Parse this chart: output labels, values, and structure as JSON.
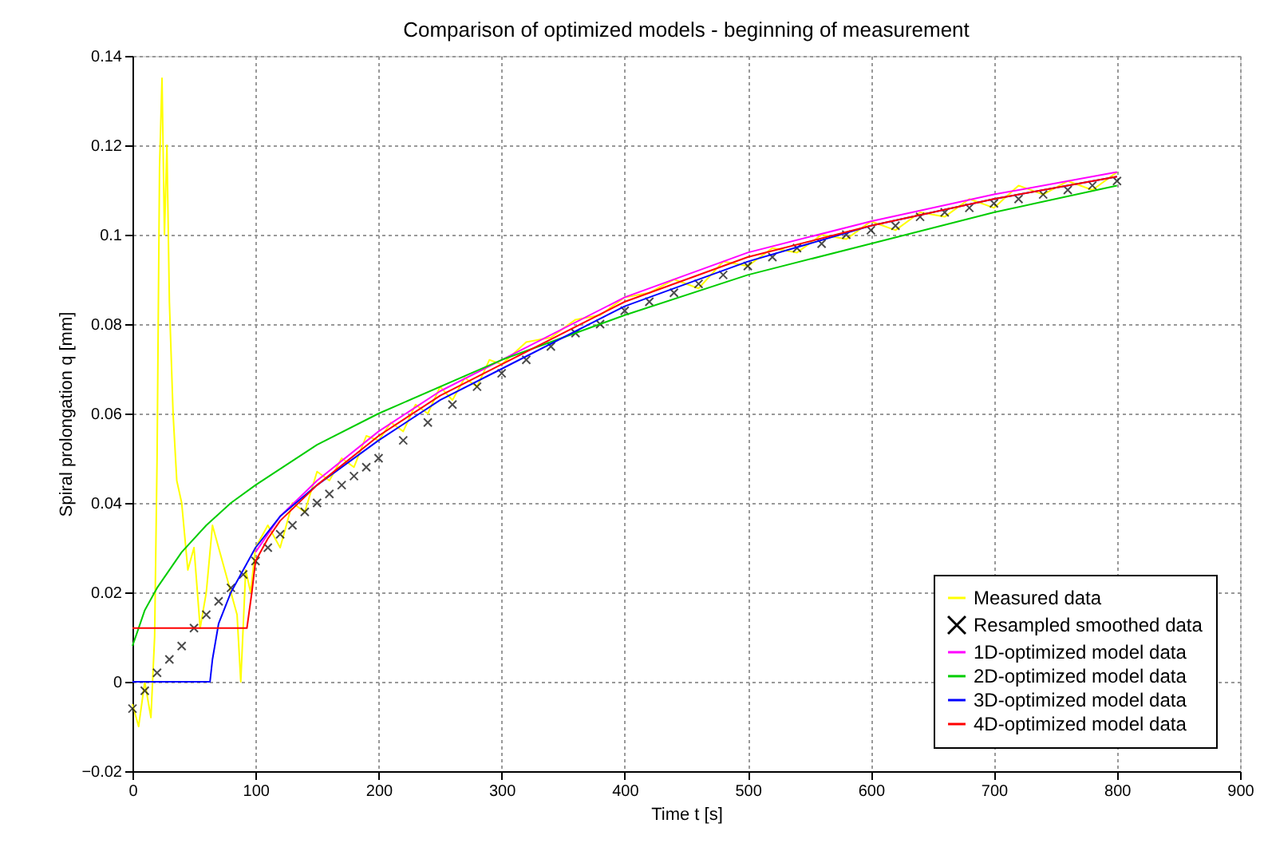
{
  "chart_data": {
    "type": "line",
    "title": "Comparison of optimized models - beginning of measurement",
    "xlabel": "Time t [s]",
    "ylabel": "Spiral prolongation q [mm]",
    "xlim": [
      0,
      900
    ],
    "xticks": [
      0,
      100,
      200,
      300,
      400,
      500,
      600,
      700,
      800,
      900
    ],
    "ylim": [
      -0.02,
      0.14
    ],
    "yticks": [
      -0.02,
      0,
      0.02,
      0.04,
      0.06,
      0.08,
      0.1,
      0.12,
      0.14
    ],
    "grid": true,
    "legend": "bottom right",
    "line_style": "solid",
    "series": [
      {
        "name": "Measured data",
        "color": "#ffff00",
        "marker": "none",
        "x": [
          0,
          5,
          10,
          15,
          18,
          20,
          22,
          24,
          26,
          28,
          30,
          33,
          36,
          40,
          45,
          50,
          55,
          60,
          65,
          70,
          75,
          80,
          85,
          88,
          92,
          96,
          100,
          110,
          120,
          130,
          140,
          150,
          160,
          170,
          180,
          190,
          200,
          210,
          220,
          230,
          240,
          250,
          260,
          270,
          280,
          290,
          300,
          320,
          340,
          360,
          380,
          400,
          420,
          440,
          460,
          480,
          500,
          520,
          540,
          560,
          580,
          600,
          620,
          640,
          660,
          680,
          700,
          720,
          740,
          760,
          780,
          800
        ],
        "values": [
          -0.005,
          -0.01,
          0.0,
          -0.008,
          0.01,
          0.05,
          0.115,
          0.135,
          0.1,
          0.12,
          0.085,
          0.06,
          0.045,
          0.04,
          0.025,
          0.03,
          0.012,
          0.02,
          0.035,
          0.03,
          0.025,
          0.02,
          0.015,
          0.0,
          0.025,
          0.02,
          0.03,
          0.035,
          0.03,
          0.04,
          0.038,
          0.047,
          0.045,
          0.05,
          0.048,
          0.055,
          0.054,
          0.058,
          0.056,
          0.062,
          0.06,
          0.066,
          0.063,
          0.068,
          0.066,
          0.072,
          0.071,
          0.076,
          0.077,
          0.081,
          0.082,
          0.086,
          0.087,
          0.09,
          0.088,
          0.094,
          0.093,
          0.097,
          0.096,
          0.1,
          0.099,
          0.103,
          0.101,
          0.105,
          0.104,
          0.108,
          0.106,
          0.111,
          0.109,
          0.112,
          0.11,
          0.114
        ]
      },
      {
        "name": "Resampled smoothed data",
        "type": "scatter",
        "color": "#000000",
        "marker": "cross",
        "x": [
          0,
          10,
          20,
          30,
          40,
          50,
          60,
          70,
          80,
          90,
          100,
          110,
          120,
          130,
          140,
          150,
          160,
          170,
          180,
          190,
          200,
          220,
          240,
          260,
          280,
          300,
          320,
          340,
          360,
          380,
          400,
          420,
          440,
          460,
          480,
          500,
          520,
          540,
          560,
          580,
          600,
          620,
          640,
          660,
          680,
          700,
          720,
          740,
          760,
          780,
          800
        ],
        "values": [
          -0.006,
          -0.002,
          0.002,
          0.005,
          0.008,
          0.012,
          0.015,
          0.018,
          0.021,
          0.024,
          0.027,
          0.03,
          0.033,
          0.035,
          0.038,
          0.04,
          0.042,
          0.044,
          0.046,
          0.048,
          0.05,
          0.054,
          0.058,
          0.062,
          0.066,
          0.069,
          0.072,
          0.075,
          0.078,
          0.08,
          0.083,
          0.085,
          0.087,
          0.089,
          0.091,
          0.093,
          0.095,
          0.097,
          0.098,
          0.1,
          0.101,
          0.102,
          0.104,
          0.105,
          0.106,
          0.107,
          0.108,
          0.109,
          0.11,
          0.111,
          0.112
        ]
      },
      {
        "name": "1D-optimized model data",
        "color": "#ff00ff",
        "marker": "none",
        "x": [
          100,
          120,
          150,
          200,
          250,
          300,
          400,
          500,
          600,
          700,
          800
        ],
        "values": [
          0.029,
          0.037,
          0.045,
          0.056,
          0.065,
          0.072,
          0.086,
          0.096,
          0.103,
          0.109,
          0.114
        ]
      },
      {
        "name": "2D-optimized model data",
        "color": "#00cc00",
        "marker": "none",
        "x": [
          0,
          5,
          10,
          20,
          40,
          60,
          80,
          100,
          150,
          200,
          300,
          400,
          500,
          600,
          700,
          800
        ],
        "values": [
          0.008,
          0.012,
          0.016,
          0.021,
          0.029,
          0.035,
          0.04,
          0.044,
          0.053,
          0.06,
          0.072,
          0.082,
          0.091,
          0.098,
          0.105,
          0.111
        ]
      },
      {
        "name": "3D-optimized model data",
        "color": "#0000ff",
        "marker": "none",
        "x": [
          0,
          63,
          65,
          70,
          80,
          90,
          100,
          120,
          150,
          200,
          250,
          300,
          400,
          500,
          600,
          700,
          800
        ],
        "values": [
          0,
          0,
          0.005,
          0.013,
          0.02,
          0.025,
          0.03,
          0.037,
          0.044,
          0.054,
          0.063,
          0.07,
          0.084,
          0.094,
          0.102,
          0.108,
          0.113
        ]
      },
      {
        "name": "4D-optimized model data",
        "color": "#ff0000",
        "marker": "none",
        "x": [
          0,
          93,
          97,
          100,
          110,
          120,
          150,
          200,
          250,
          300,
          400,
          500,
          600,
          700,
          800
        ],
        "values": [
          0.012,
          0.012,
          0.02,
          0.027,
          0.032,
          0.036,
          0.044,
          0.055,
          0.064,
          0.071,
          0.085,
          0.095,
          0.102,
          0.108,
          0.113
        ]
      }
    ]
  }
}
